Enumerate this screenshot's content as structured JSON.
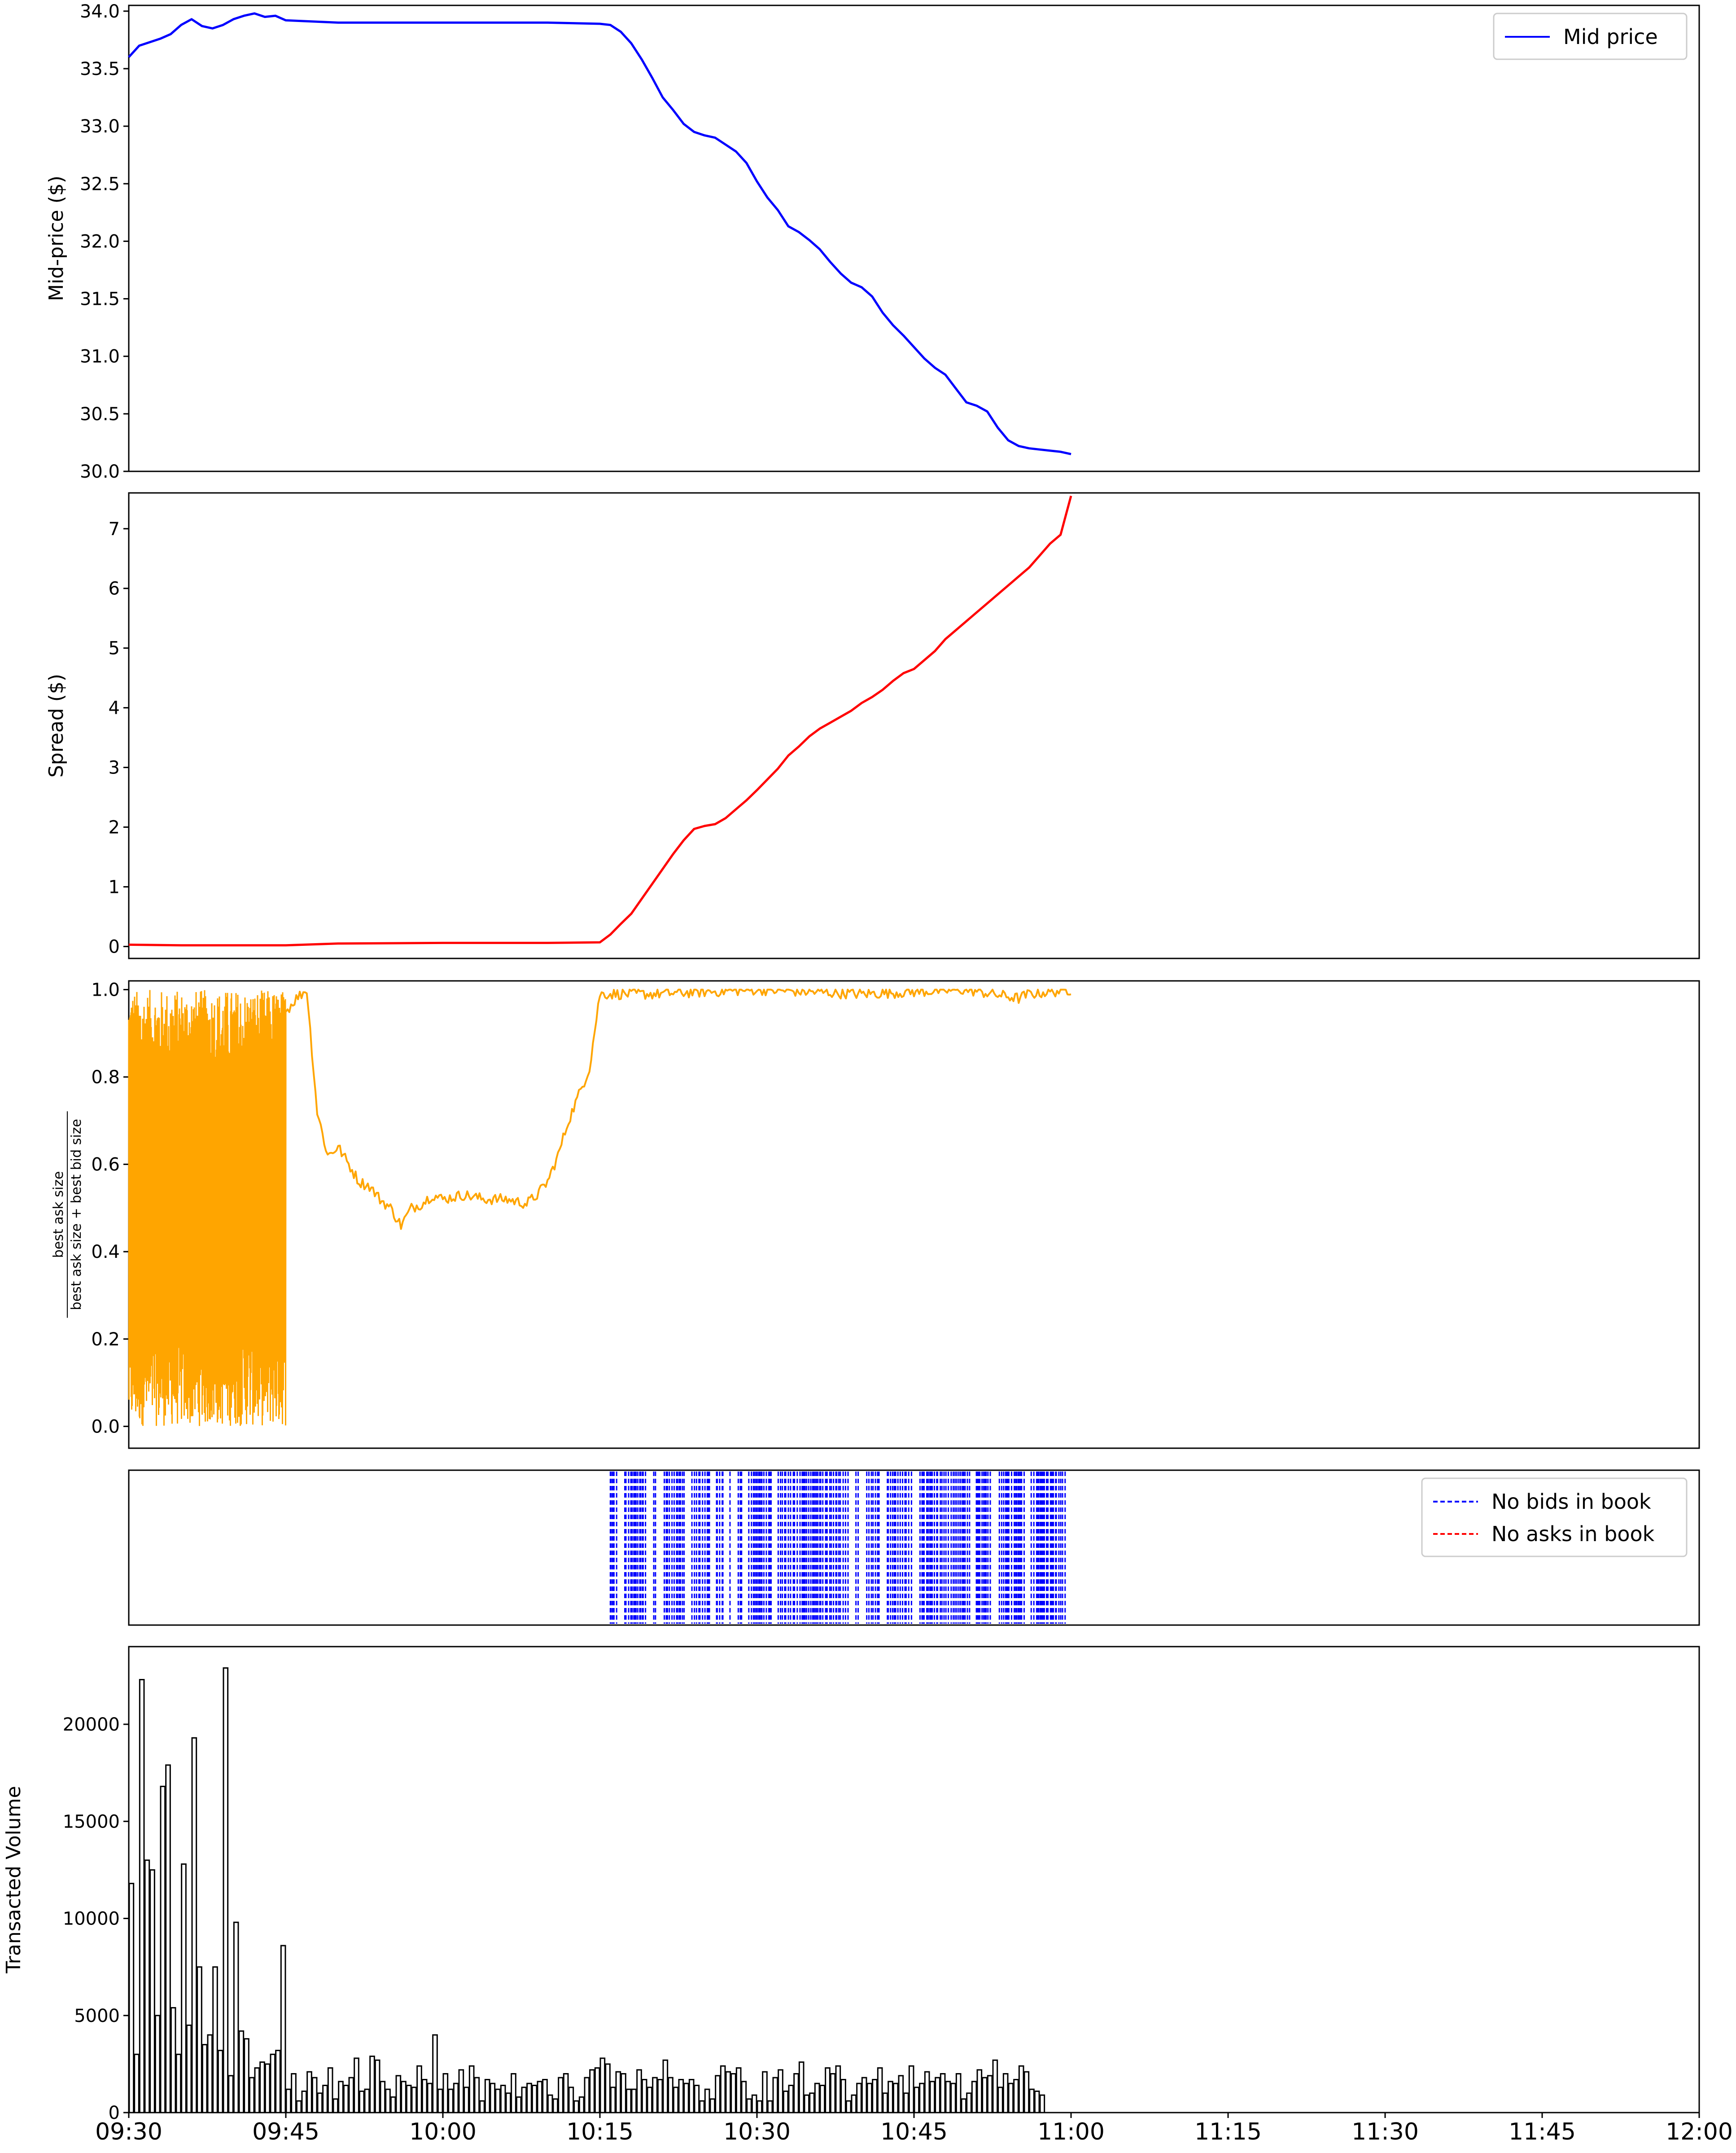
{
  "chart_data": [
    {
      "type": "line",
      "ylabel": "Mid-price ($)",
      "ylim": [
        30.0,
        34.05
      ],
      "yticks": [
        "30.0",
        "30.5",
        "31.0",
        "31.5",
        "32.0",
        "32.5",
        "33.0",
        "33.5",
        "34.0"
      ],
      "xlim": [
        "09:30",
        "12:00"
      ],
      "legend_position": "top-right",
      "series": [
        {
          "name": "Mid price",
          "color": "#0000ff",
          "x": [
            "09:30",
            "09:31",
            "09:32",
            "09:33",
            "09:34",
            "09:35",
            "09:36",
            "09:37",
            "09:38",
            "09:39",
            "09:40",
            "09:41",
            "09:42",
            "09:43",
            "09:44",
            "09:45",
            "09:50",
            "10:00",
            "10:10",
            "10:15",
            "10:16",
            "10:17",
            "10:18",
            "10:19",
            "10:20",
            "10:21",
            "10:22",
            "10:23",
            "10:24",
            "10:25",
            "10:26",
            "10:27",
            "10:28",
            "10:29",
            "10:30",
            "10:31",
            "10:32",
            "10:33",
            "10:34",
            "10:35",
            "10:36",
            "10:37",
            "10:38",
            "10:39",
            "10:40",
            "10:41",
            "10:42",
            "10:43",
            "10:44",
            "10:45",
            "10:46",
            "10:47",
            "10:48",
            "10:49",
            "10:50",
            "10:51",
            "10:52",
            "10:53",
            "10:54",
            "10:55",
            "10:56",
            "10:57",
            "10:58",
            "10:59",
            "11:00"
          ],
          "y": [
            33.6,
            33.7,
            33.73,
            33.76,
            33.8,
            33.88,
            33.93,
            33.87,
            33.85,
            33.88,
            33.93,
            33.96,
            33.98,
            33.95,
            33.96,
            33.92,
            33.9,
            33.9,
            33.9,
            33.89,
            33.88,
            33.82,
            33.72,
            33.58,
            33.42,
            33.25,
            33.14,
            33.02,
            32.95,
            32.92,
            32.9,
            32.84,
            32.78,
            32.68,
            32.52,
            32.38,
            32.27,
            32.13,
            32.08,
            32.01,
            31.93,
            31.82,
            31.72,
            31.64,
            31.6,
            31.52,
            31.38,
            31.27,
            31.18,
            31.08,
            30.98,
            30.9,
            30.84,
            30.72,
            30.6,
            30.57,
            30.52,
            30.38,
            30.27,
            30.22,
            30.2,
            30.19,
            30.18,
            30.17,
            30.15
          ]
        }
      ]
    },
    {
      "type": "line",
      "ylabel": "Spread ($)",
      "ylim": [
        -0.2,
        7.6
      ],
      "yticks": [
        "0",
        "1",
        "2",
        "3",
        "4",
        "5",
        "6",
        "7"
      ],
      "xlim": [
        "09:30",
        "12:00"
      ],
      "series": [
        {
          "color": "#ff0000",
          "x": [
            "09:30",
            "09:35",
            "09:45",
            "09:50",
            "10:00",
            "10:10",
            "10:15",
            "10:16",
            "10:17",
            "10:18",
            "10:19",
            "10:20",
            "10:21",
            "10:22",
            "10:23",
            "10:24",
            "10:25",
            "10:26",
            "10:27",
            "10:28",
            "10:29",
            "10:30",
            "10:31",
            "10:32",
            "10:33",
            "10:34",
            "10:35",
            "10:36",
            "10:37",
            "10:38",
            "10:39",
            "10:40",
            "10:41",
            "10:42",
            "10:43",
            "10:44",
            "10:45",
            "10:46",
            "10:47",
            "10:48",
            "10:49",
            "10:50",
            "10:51",
            "10:52",
            "10:53",
            "10:54",
            "10:55",
            "10:56",
            "10:57",
            "10:58",
            "10:59",
            "11:00"
          ],
          "y": [
            0.03,
            0.02,
            0.02,
            0.05,
            0.06,
            0.06,
            0.07,
            0.2,
            0.38,
            0.55,
            0.8,
            1.05,
            1.3,
            1.55,
            1.78,
            1.97,
            2.02,
            2.05,
            2.15,
            2.3,
            2.45,
            2.62,
            2.8,
            2.98,
            3.2,
            3.35,
            3.52,
            3.65,
            3.75,
            3.85,
            3.95,
            4.08,
            4.18,
            4.3,
            4.45,
            4.58,
            4.65,
            4.8,
            4.95,
            5.15,
            5.3,
            5.45,
            5.6,
            5.75,
            5.9,
            6.05,
            6.2,
            6.35,
            6.55,
            6.75,
            6.9,
            7.55
          ]
        }
      ]
    },
    {
      "type": "line",
      "ylabel_numerator": "best ask size",
      "ylabel_denominator": "best ask size + best bid size",
      "ylim": [
        -0.05,
        1.02
      ],
      "yticks": [
        "0.0",
        "0.2",
        "0.4",
        "0.6",
        "0.8",
        "1.0"
      ],
      "xlim": [
        "09:30",
        "12:00"
      ],
      "series": [
        {
          "color": "#ffa500",
          "x": [
            "09:45",
            "09:46",
            "09:47",
            "09:48",
            "09:49",
            "09:50",
            "09:51",
            "09:52",
            "09:53",
            "09:54",
            "09:55",
            "09:56",
            "09:57",
            "09:58",
            "09:59",
            "10:00",
            "10:02",
            "10:04",
            "10:06",
            "10:08",
            "10:09",
            "10:10",
            "10:11",
            "10:12",
            "10:13",
            "10:14",
            "10:15",
            "10:20",
            "10:30",
            "10:40",
            "10:50",
            "10:55",
            "10:56",
            "11:00"
          ],
          "y": [
            0.95,
            0.98,
            1.0,
            0.72,
            0.62,
            0.64,
            0.6,
            0.56,
            0.55,
            0.52,
            0.5,
            0.46,
            0.5,
            0.51,
            0.53,
            0.52,
            0.53,
            0.52,
            0.52,
            0.51,
            0.53,
            0.56,
            0.62,
            0.7,
            0.76,
            0.82,
            0.99,
            0.99,
            1.0,
            0.99,
            1.0,
            0.98,
            0.99,
            1.0
          ]
        }
      ],
      "noisy_region": [
        "09:30",
        "09:45"
      ],
      "noisy_range": [
        0.0,
        1.0
      ]
    },
    {
      "type": "event-lines",
      "legend_position": "top-right",
      "series": [
        {
          "name": "No bids in book",
          "color": "#0000ff",
          "style": "dashed",
          "range": [
            "10:16",
            "11:00"
          ]
        },
        {
          "name": "No asks in book",
          "color": "#ff0000",
          "style": "dashed"
        }
      ]
    },
    {
      "type": "bar",
      "ylabel": "Transacted Volume",
      "ylim": [
        0,
        24000
      ],
      "yticks": [
        "0",
        "5000",
        "10000",
        "15000",
        "20000"
      ],
      "xlim": [
        "09:30",
        "12:00"
      ],
      "xticks": [
        "09:30",
        "09:45",
        "10:00",
        "10:15",
        "10:30",
        "10:45",
        "11:00",
        "11:15",
        "11:30",
        "11:45",
        "12:00"
      ],
      "bin_minutes": 0.5,
      "values": [
        11800,
        3000,
        22300,
        13000,
        12500,
        5000,
        16800,
        17900,
        5400,
        3000,
        12800,
        4500,
        19300,
        7500,
        3500,
        4000,
        7500,
        3200,
        22900,
        1900,
        9800,
        4200,
        3800,
        1800,
        2300,
        2600,
        2500,
        3000,
        3200,
        8600,
        1200,
        2000,
        600,
        1100,
        2100,
        1800,
        1000,
        1400,
        2300,
        700,
        1600,
        1400,
        1800,
        2800,
        1100,
        1200,
        2900,
        2700,
        1600,
        1200,
        800,
        1900,
        1600,
        1400,
        1300,
        2400,
        1700,
        1500,
        4000,
        1200,
        2000,
        1200,
        1500,
        2200,
        1300,
        2400,
        1800,
        600,
        1700,
        1500,
        1200,
        1400,
        1000,
        2000,
        800,
        1300,
        1500,
        1400,
        1600,
        1700,
        900,
        700,
        1800,
        2000,
        1300,
        600,
        800,
        1800,
        2200,
        2300,
        2800,
        2500,
        1300,
        2100,
        2000,
        1200,
        1200,
        2200,
        1700,
        1300,
        1800,
        1700,
        2700,
        1800,
        1300,
        1700,
        1500,
        1700,
        1400,
        600,
        1200,
        700,
        1900,
        2400,
        2100,
        2000,
        2300,
        1600,
        700,
        900,
        600,
        2100,
        600,
        1800,
        2200,
        1100,
        1400,
        2000,
        2600,
        900,
        1000,
        1500,
        1400,
        2300,
        2000,
        2400,
        1700,
        600,
        900,
        1500,
        1800,
        1500,
        1700,
        2300,
        1000,
        1600,
        1500,
        1900,
        1000,
        2400,
        1300,
        1500,
        2100,
        1600,
        1800,
        2000,
        1600,
        1500,
        2000,
        700,
        1000,
        1600,
        2200,
        1800,
        1900,
        2700,
        1300,
        2000,
        1500,
        1700,
        2400,
        2100,
        1200,
        1100,
        900
      ]
    }
  ]
}
